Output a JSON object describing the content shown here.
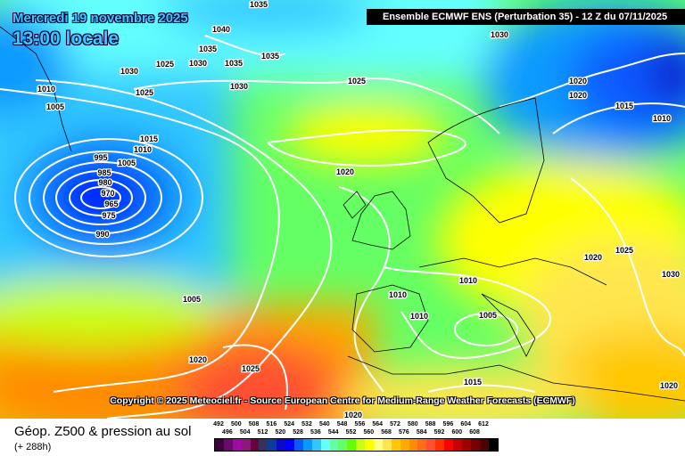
{
  "header": {
    "date": "Mercredi 19 novembre 2025",
    "time": "13:00 locale",
    "run_info": "Ensemble ECMWF ENS  (Perturbation 35)  -  12 Z du 07/11/2025"
  },
  "copyright": "Copyright © 2025 Meteociel.fr - Source European Centre for Medium-Range Weather Forecasts (ECMWF)",
  "footer": {
    "parameter": "Géop. Z500 & pression au sol",
    "lead_time": "(+ 288h)"
  },
  "isobar_labels": [
    "1035",
    "1040",
    "1035",
    "1030",
    "1025",
    "1030",
    "1035",
    "1035",
    "1030",
    "1025",
    "1010",
    "1025",
    "1005",
    "1015",
    "1010",
    "1005",
    "995",
    "985",
    "980",
    "970",
    "965",
    "975",
    "990",
    "1020",
    "1005",
    "1020",
    "1025",
    "1010",
    "1010",
    "1010",
    "1005",
    "1020",
    "1025",
    "1030",
    "1020",
    "1020",
    "1015",
    "1010",
    "1030",
    "1015",
    "1020",
    "1020"
  ],
  "color_scale": {
    "unit_values": [
      "492",
      "496",
      "500",
      "504",
      "508",
      "512",
      "516",
      "520",
      "524",
      "528",
      "532",
      "536",
      "540",
      "544",
      "548",
      "552",
      "556",
      "560",
      "564",
      "568",
      "572",
      "576",
      "580",
      "584",
      "588",
      "592",
      "596",
      "600",
      "604",
      "608",
      "612"
    ],
    "colors": [
      "#3f0040",
      "#6a0a6a",
      "#a00aa0",
      "#8a1a7a",
      "#6a0040",
      "#32325a",
      "#0a3c9a",
      "#0a0ac8",
      "#0000ff",
      "#0a5aff",
      "#0a9aff",
      "#32c8ff",
      "#64ffff",
      "#64ffa0",
      "#64ff64",
      "#64ff00",
      "#c8ff14",
      "#ffff00",
      "#ffff82",
      "#ffe650",
      "#ffc800",
      "#ffaa00",
      "#ff8c00",
      "#ff6e14",
      "#ff5032",
      "#ff3200",
      "#ff0000",
      "#c80000",
      "#a00000",
      "#780000",
      "#500000",
      "#000000"
    ]
  }
}
